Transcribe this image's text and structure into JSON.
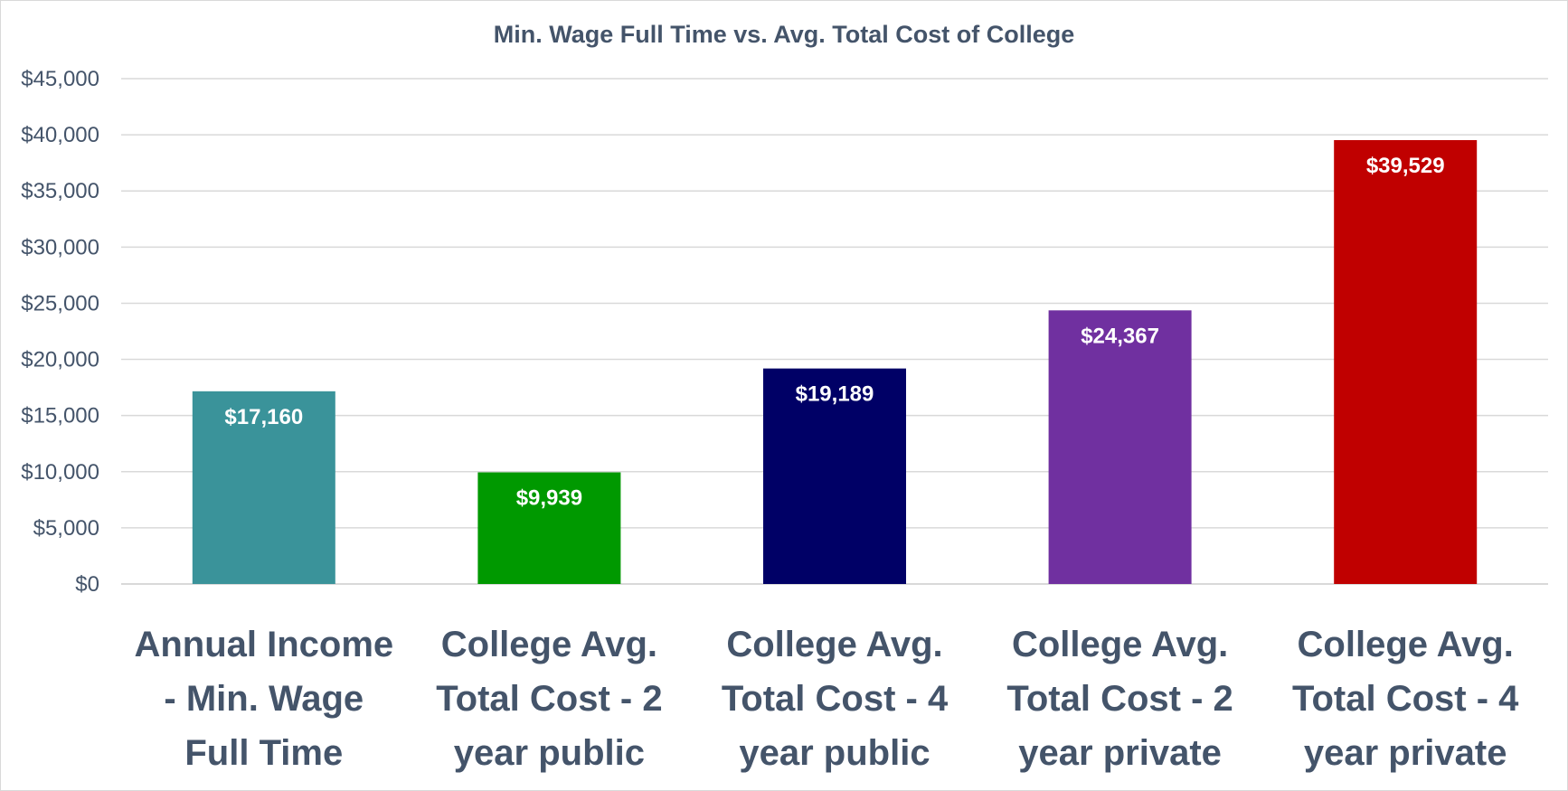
{
  "chart_data": {
    "type": "bar",
    "title": "Min. Wage Full Time vs. Avg. Total Cost of College",
    "xlabel": "",
    "ylabel": "",
    "ylim": [
      0,
      45000
    ],
    "ytick_labels": [
      "$0",
      "$5,000",
      "$10,000",
      "$15,000",
      "$20,000",
      "$25,000",
      "$30,000",
      "$35,000",
      "$40,000",
      "$45,000"
    ],
    "grid": true,
    "legend": "none",
    "categories": [
      [
        "Annual Income",
        "- Min. Wage",
        "Full Time"
      ],
      [
        "College Avg.",
        "Total Cost - 2",
        "year public"
      ],
      [
        "College Avg.",
        "Total Cost - 4",
        "year public"
      ],
      [
        "College Avg.",
        "Total Cost - 2",
        "year private"
      ],
      [
        "College Avg.",
        "Total Cost - 4",
        "year private"
      ]
    ],
    "values": [
      17160,
      9939,
      19189,
      24367,
      39529
    ],
    "data_labels": [
      "$17,160",
      "$9,939",
      "$19,189",
      "$24,367",
      "$39,529"
    ],
    "colors": [
      "#3a939a",
      "#009900",
      "#000066",
      "#7030a0",
      "#c00000"
    ]
  }
}
